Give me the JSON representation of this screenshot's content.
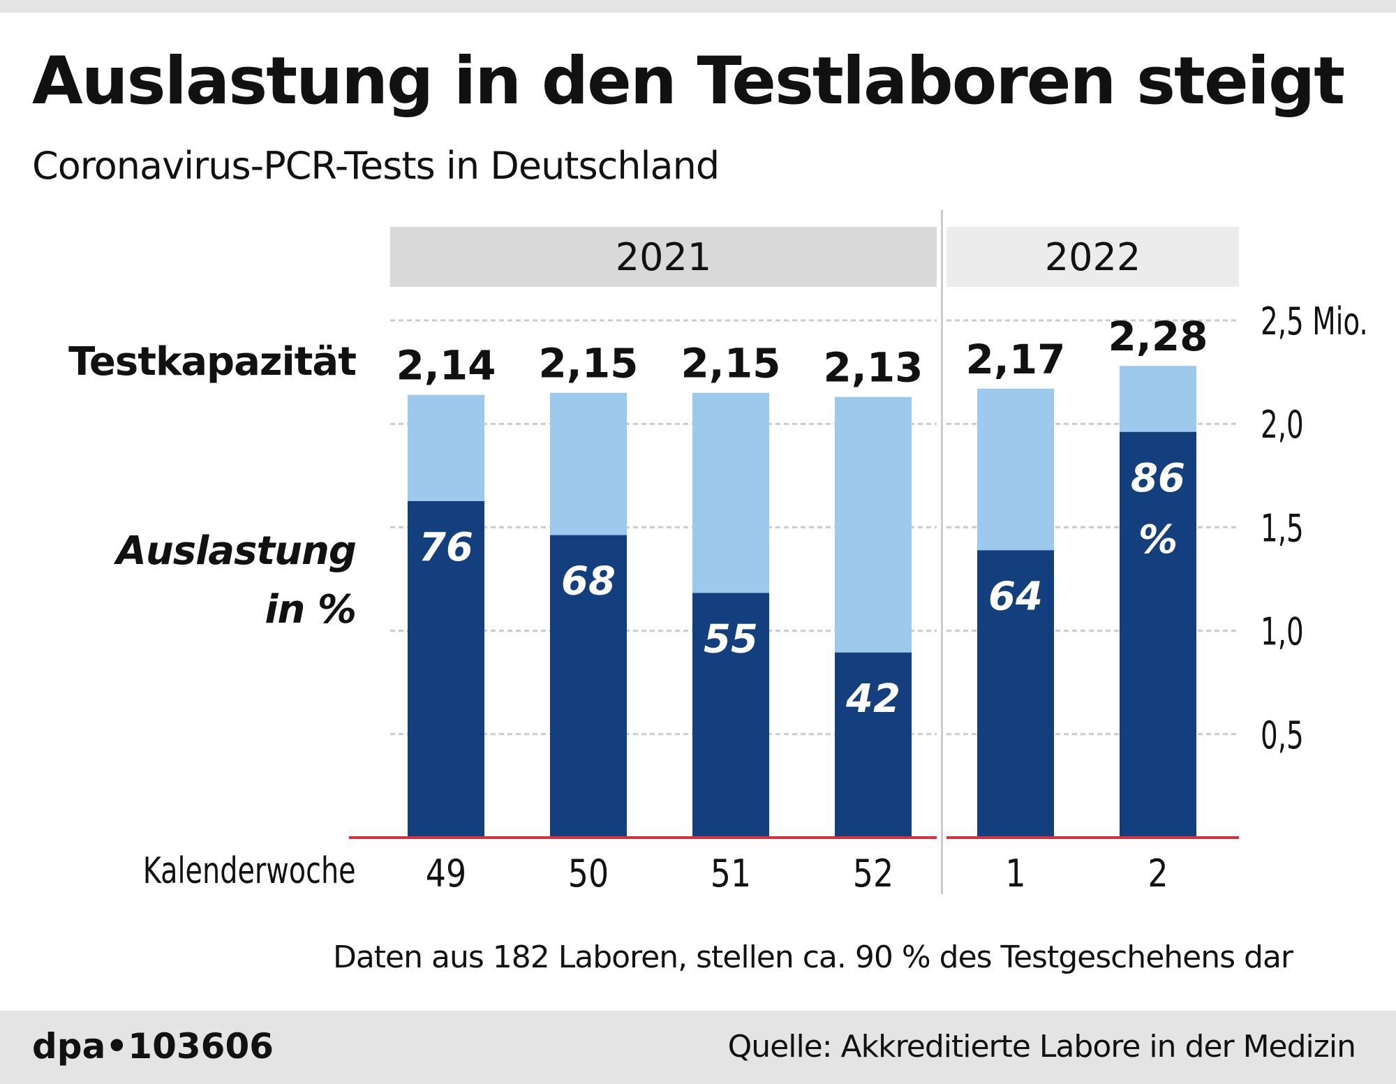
{
  "title": "Auslastung in den Testlaboren steigt",
  "subtitle": "Coronavirus-PCR-Tests in Deutschland",
  "footnote": "Daten aus 182 Laboren, stellen ca. 90 % des Testgeschehens dar",
  "agency": "dpa•103606",
  "source": "Quelle: Akkreditierte Labore in der Medizin",
  "chart_data": {
    "type": "bar",
    "years": [
      "2021",
      "2022"
    ],
    "categories": [
      "49",
      "50",
      "51",
      "52",
      "1",
      "2"
    ],
    "xlabel": "Kalenderwoche",
    "capacity_label": "Testkapazität",
    "utilization_label": "Auslastung in %",
    "capacity": [
      2.14,
      2.15,
      2.15,
      2.13,
      2.17,
      2.28
    ],
    "capacity_labels": [
      "2,14",
      "2,15",
      "2,15",
      "2,13",
      "2,17",
      "2,28"
    ],
    "utilization_percent": [
      76,
      68,
      55,
      42,
      64,
      86
    ],
    "utilization_labels": [
      "76",
      "68",
      "55",
      "42",
      "64",
      "86 %"
    ],
    "ylim": [
      0,
      2.5
    ],
    "yticks": [
      "0,5",
      "1,0",
      "1,5",
      "2,0",
      "2,5 Mio."
    ],
    "ytick_values": [
      0.5,
      1.0,
      1.5,
      2.0,
      2.5
    ],
    "grid": true,
    "colors": {
      "utilized": "#143f7e",
      "capacity": "#9dcaec",
      "baseline": "#d9303e",
      "grid": "#cccccc"
    }
  }
}
